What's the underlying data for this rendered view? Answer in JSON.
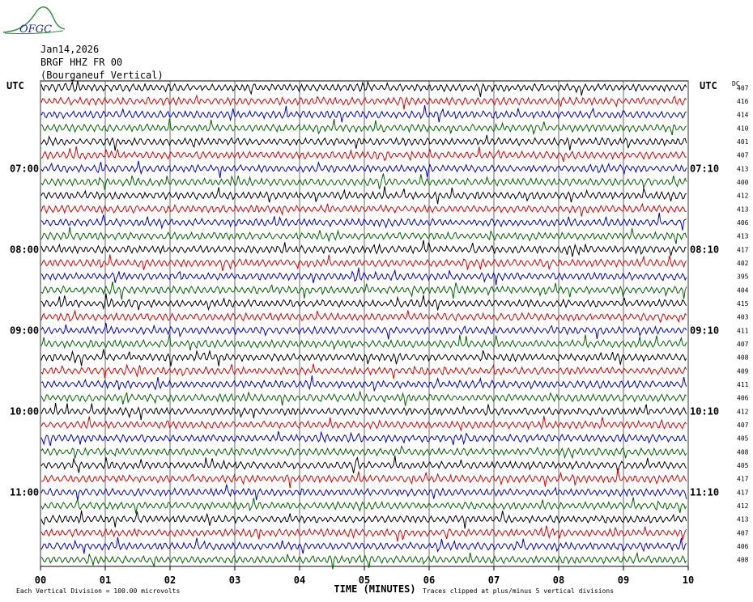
{
  "logo": {
    "text": "OFGC"
  },
  "header": {
    "date": "Jan14,2026",
    "station": "BRGF HHZ FR 00",
    "location": "(Bourganeuf Vertical)"
  },
  "chart_data": {
    "type": "line",
    "title": "Jan14,2026",
    "left_axis_title": "UTC",
    "right_axis_title": "UTC",
    "rms_header": "DC",
    "xlabel": "TIME (MINUTES)",
    "x_ticks": [
      "00",
      "01",
      "02",
      "03",
      "04",
      "05",
      "06",
      "07",
      "08",
      "09",
      "10"
    ],
    "xlim": [
      0,
      10
    ],
    "left_time_labels": [
      {
        "row": 6,
        "text": "07:00"
      },
      {
        "row": 12,
        "text": "08:00"
      },
      {
        "row": 18,
        "text": "09:00"
      },
      {
        "row": 24,
        "text": "10:00"
      },
      {
        "row": 30,
        "text": "11:00"
      }
    ],
    "right_time_labels": [
      {
        "row": 6,
        "text": "07:10"
      },
      {
        "row": 12,
        "text": "08:10"
      },
      {
        "row": 18,
        "text": "09:10"
      },
      {
        "row": 24,
        "text": "10:10"
      },
      {
        "row": 30,
        "text": "11:10"
      }
    ],
    "trace_colors": [
      "#000000",
      "#e00000",
      "#0000d0",
      "#006400"
    ],
    "row_values": [
      "407",
      "416",
      "414",
      "410",
      "401",
      "407",
      "413",
      "400",
      "412",
      "413",
      "406",
      "413",
      "417",
      "402",
      "395",
      "404",
      "415",
      "403",
      "411",
      "407",
      "408",
      "409",
      "411",
      "406",
      "412",
      "407",
      "405",
      "408",
      "405",
      "417",
      "417",
      "412",
      "413",
      "407",
      "406",
      "408"
    ],
    "footer_left": "Each Vertical Division =  100.00 microvolts",
    "footer_right": "Traces clipped at plus/minus 5 vertical divisions",
    "grid": true
  }
}
